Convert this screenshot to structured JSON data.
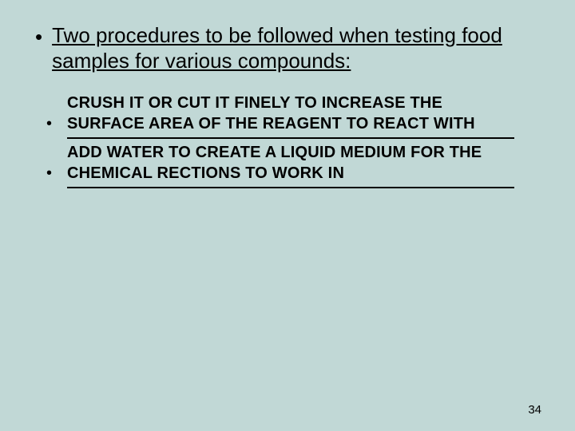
{
  "slide": {
    "background_color": "#c1d8d6",
    "text_color": "#000000",
    "underline_color": "#000000",
    "main_font_size_pt": 20,
    "answer_font_size_pt": 15,
    "page_number": "34"
  },
  "main": {
    "text": "Two procedures to be followed when testing food samples for various compounds:"
  },
  "answers": [
    {
      "text": "CRUSH IT OR CUT IT FINELY TO INCREASE THE SURFACE AREA OF THE REAGENT TO REACT WITH"
    },
    {
      "text": "ADD WATER TO CREATE A LIQUID MEDIUM FOR THE CHEMICAL RECTIONS TO WORK IN"
    }
  ]
}
